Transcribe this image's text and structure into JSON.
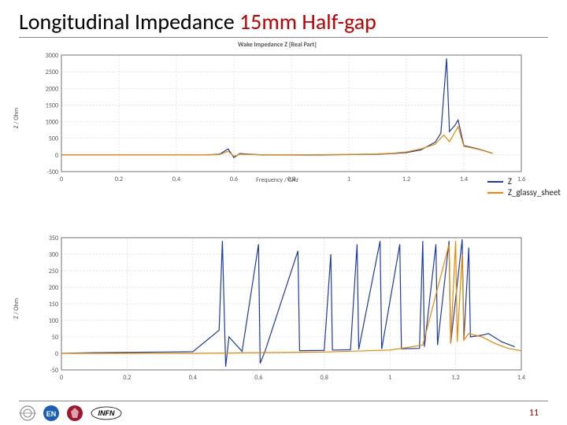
{
  "title": {
    "plain": "Longitudinal Impedance ",
    "accent": "15mm Half-gap"
  },
  "legend": {
    "items": [
      {
        "label": "Z",
        "color": "#1f3aa6"
      },
      {
        "label": "Z_glassy_sheet",
        "color": "#e88900"
      }
    ]
  },
  "top_chart": {
    "type": "line",
    "title": "Wake Impedance Z [Real Part]",
    "xlabel": "Frequency / GHz",
    "ylabel": "Z / Ohm",
    "xlim": [
      0,
      1.6
    ],
    "xtick_step": 0.2,
    "ylim": [
      -500,
      3000
    ],
    "ytick_step": 500,
    "grid_color": "#cccccc",
    "background_color": "#ffffff",
    "line_width": 1.2,
    "series": [
      {
        "name": "Z",
        "color": "#1f3aa6",
        "points": [
          [
            0.0,
            0
          ],
          [
            0.05,
            0
          ],
          [
            0.1,
            0
          ],
          [
            0.2,
            0
          ],
          [
            0.3,
            0
          ],
          [
            0.4,
            0
          ],
          [
            0.5,
            0
          ],
          [
            0.55,
            20
          ],
          [
            0.58,
            180
          ],
          [
            0.6,
            -80
          ],
          [
            0.62,
            40
          ],
          [
            0.7,
            0
          ],
          [
            0.8,
            0
          ],
          [
            0.9,
            0
          ],
          [
            1.0,
            10
          ],
          [
            1.1,
            20
          ],
          [
            1.15,
            40
          ],
          [
            1.2,
            70
          ],
          [
            1.25,
            150
          ],
          [
            1.3,
            380
          ],
          [
            1.32,
            650
          ],
          [
            1.34,
            2900
          ],
          [
            1.35,
            700
          ],
          [
            1.37,
            900
          ],
          [
            1.38,
            1050
          ],
          [
            1.4,
            280
          ],
          [
            1.45,
            180
          ],
          [
            1.5,
            50
          ]
        ]
      },
      {
        "name": "Z_glassy_sheet",
        "color": "#e88900",
        "points": [
          [
            0.0,
            0
          ],
          [
            0.1,
            0
          ],
          [
            0.2,
            0
          ],
          [
            0.3,
            0
          ],
          [
            0.4,
            0
          ],
          [
            0.5,
            0
          ],
          [
            0.55,
            10
          ],
          [
            0.58,
            110
          ],
          [
            0.6,
            -40
          ],
          [
            0.62,
            20
          ],
          [
            0.7,
            5
          ],
          [
            0.8,
            5
          ],
          [
            0.9,
            10
          ],
          [
            1.0,
            15
          ],
          [
            1.1,
            30
          ],
          [
            1.15,
            50
          ],
          [
            1.2,
            90
          ],
          [
            1.25,
            180
          ],
          [
            1.3,
            320
          ],
          [
            1.33,
            600
          ],
          [
            1.35,
            400
          ],
          [
            1.37,
            700
          ],
          [
            1.38,
            850
          ],
          [
            1.4,
            260
          ],
          [
            1.45,
            170
          ],
          [
            1.5,
            50
          ]
        ]
      }
    ]
  },
  "bottom_chart": {
    "type": "line",
    "title": "",
    "xlabel": "Frequency / GHz",
    "ylabel": "Z / Ohm",
    "xlim": [
      0,
      1.4
    ],
    "xtick_step": 0.2,
    "ylim": [
      -50,
      350
    ],
    "ytick_step": 50,
    "grid_color": "#cccccc",
    "background_color": "#ffffff",
    "line_width": 1.2,
    "series": [
      {
        "name": "Z",
        "color": "#1f3aa6",
        "points": [
          [
            0.0,
            0
          ],
          [
            0.1,
            2
          ],
          [
            0.2,
            3
          ],
          [
            0.3,
            4
          ],
          [
            0.4,
            5
          ],
          [
            0.48,
            70
          ],
          [
            0.49,
            340
          ],
          [
            0.5,
            -40
          ],
          [
            0.51,
            50
          ],
          [
            0.55,
            6
          ],
          [
            0.6,
            330
          ],
          [
            0.605,
            -30
          ],
          [
            0.62,
            7
          ],
          [
            0.72,
            310
          ],
          [
            0.725,
            8
          ],
          [
            0.8,
            9
          ],
          [
            0.82,
            300
          ],
          [
            0.825,
            10
          ],
          [
            0.88,
            11
          ],
          [
            0.9,
            330
          ],
          [
            0.905,
            12
          ],
          [
            0.97,
            340
          ],
          [
            0.975,
            13
          ],
          [
            1.03,
            330
          ],
          [
            1.035,
            14
          ],
          [
            1.09,
            15
          ],
          [
            1.1,
            340
          ],
          [
            1.105,
            20
          ],
          [
            1.14,
            330
          ],
          [
            1.145,
            25
          ],
          [
            1.18,
            340
          ],
          [
            1.185,
            30
          ],
          [
            1.22,
            345
          ],
          [
            1.225,
            40
          ],
          [
            1.24,
            320
          ],
          [
            1.245,
            50
          ],
          [
            1.28,
            55
          ],
          [
            1.3,
            60
          ],
          [
            1.34,
            35
          ],
          [
            1.38,
            20
          ]
        ]
      },
      {
        "name": "Z_glassy_sheet",
        "color": "#e88900",
        "points": [
          [
            0.0,
            0
          ],
          [
            0.2,
            0
          ],
          [
            0.4,
            0
          ],
          [
            0.6,
            2
          ],
          [
            0.8,
            4
          ],
          [
            1.0,
            10
          ],
          [
            1.1,
            25
          ],
          [
            1.18,
            330
          ],
          [
            1.185,
            30
          ],
          [
            1.2,
            340
          ],
          [
            1.205,
            35
          ],
          [
            1.22,
            300
          ],
          [
            1.225,
            40
          ],
          [
            1.24,
            60
          ],
          [
            1.28,
            50
          ],
          [
            1.32,
            30
          ],
          [
            1.36,
            15
          ],
          [
            1.4,
            8
          ]
        ]
      }
    ]
  },
  "page_number": "11",
  "logos": {
    "cern_ring": "#888888",
    "en_color": "#1a5fb4",
    "crest_color": "#a01830",
    "infn_color": "#000000"
  }
}
